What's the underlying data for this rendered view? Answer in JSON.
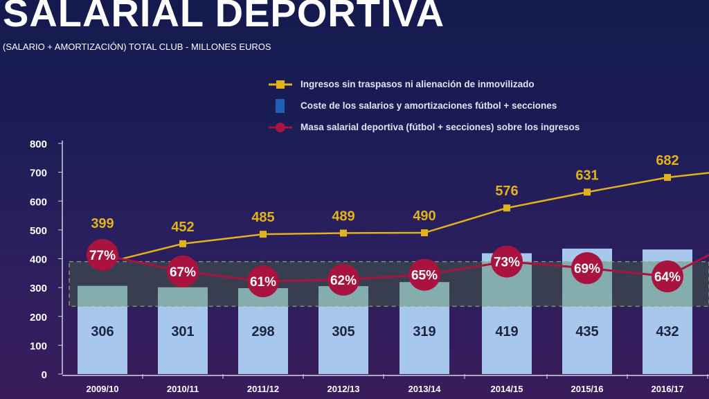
{
  "title": "SALARIAL DEPORTIVA",
  "subtitle": "(SALARIO + AMORTIZACIÓN) TOTAL CLUB  - MILLONES EUROS",
  "colors": {
    "revenue": "#e2b21c",
    "cost_bar": "#a7c8ec",
    "pct": "#a8143f",
    "band": "#4a7a3a"
  },
  "chart_data": {
    "type": "bar",
    "categories": [
      "2009/10",
      "2010/11",
      "2011/12",
      "2012/13",
      "2013/14",
      "2014/15",
      "2015/16",
      "2016/17"
    ],
    "ylim": [
      0,
      800
    ],
    "yticks": [
      "0",
      "100",
      "200",
      "300",
      "400",
      "500",
      "600",
      "700",
      "800"
    ],
    "legend_placement": "top-right",
    "series": [
      {
        "name": "Ingresos sin traspasos ni alienación de inmovilizado",
        "type": "line",
        "values": [
          399,
          452,
          485,
          489,
          490,
          576,
          631,
          682
        ],
        "labels": [
          "399",
          "452",
          "485",
          "489",
          "490",
          "576",
          "631",
          "682"
        ]
      },
      {
        "name": "Coste de los salarios y amortizaciones fútbol + secciones",
        "type": "bar",
        "values": [
          306,
          301,
          298,
          305,
          319,
          419,
          435,
          432
        ],
        "labels": [
          "306",
          "301",
          "298",
          "305",
          "319",
          "419",
          "435",
          "432"
        ]
      },
      {
        "name": "Masa salarial deportiva (fútbol + secciones) sobre los ingresos",
        "type": "line",
        "unit": "%",
        "values": [
          77,
          67,
          61,
          62,
          65,
          73,
          69,
          64
        ],
        "labels": [
          "77%",
          "67%",
          "61%",
          "62%",
          "65%",
          "73%",
          "69%",
          "64%"
        ]
      }
    ],
    "reference_band": [
      235,
      390
    ]
  }
}
